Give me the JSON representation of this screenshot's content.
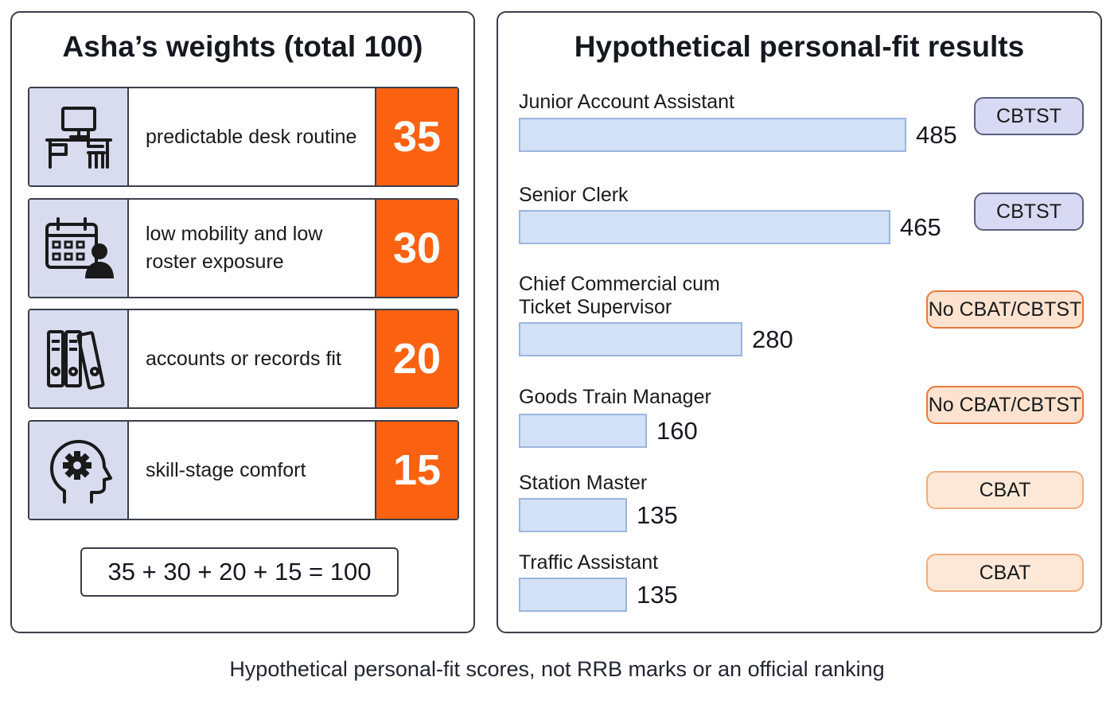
{
  "left_panel": {
    "title": "Asha’s weights (total 100)",
    "weights": [
      {
        "icon": "desk-computer-icon",
        "label": "predictable desk routine",
        "value": "35"
      },
      {
        "icon": "calendar-person-icon",
        "label": "low mobility and low roster exposure",
        "value": "30"
      },
      {
        "icon": "binders-icon",
        "label": "accounts or records fit",
        "value": "20"
      },
      {
        "icon": "head-gear-icon",
        "label": "skill-stage comfort",
        "value": "15"
      }
    ],
    "sum": "35 + 30 + 20 + 15 = 100"
  },
  "right_panel": {
    "title": "Hypothetical personal-fit results"
  },
  "chart_data": {
    "type": "bar",
    "orientation": "horizontal",
    "title": "Hypothetical personal-fit results",
    "categories": [
      "Junior Account Assistant",
      "Senior Clerk",
      "Chief Commercial cum Ticket Supervisor",
      "Goods Train Manager",
      "Station Master",
      "Traffic Assistant"
    ],
    "label_lines": [
      [
        "Junior Account Assistant"
      ],
      [
        "Senior Clerk"
      ],
      [
        "Chief Commercial cum",
        "Ticket Supervisor"
      ],
      [
        "Goods Train Manager"
      ],
      [
        "Station Master"
      ],
      [
        "Traffic Assistant"
      ]
    ],
    "values": [
      485,
      465,
      280,
      160,
      135,
      135
    ],
    "badges": [
      "CBTST",
      "CBTST",
      "No CBAT/CBTST",
      "No CBAT/CBTST",
      "CBAT",
      "CBAT"
    ],
    "badge_styles": [
      "purple",
      "purple",
      "orange-strong",
      "orange-strong",
      "orange-soft",
      "orange-soft"
    ],
    "bar_color": "#d3e1f7",
    "bar_border_color": "#9bb6dd",
    "grid": false,
    "legend": "none"
  },
  "footnote": "Hypothetical personal-fit scores, not RRB marks or an official ranking",
  "colors": {
    "accent_orange": "#fa6212",
    "icon_box": "#d9dbef",
    "border": "#3a3f4a"
  }
}
